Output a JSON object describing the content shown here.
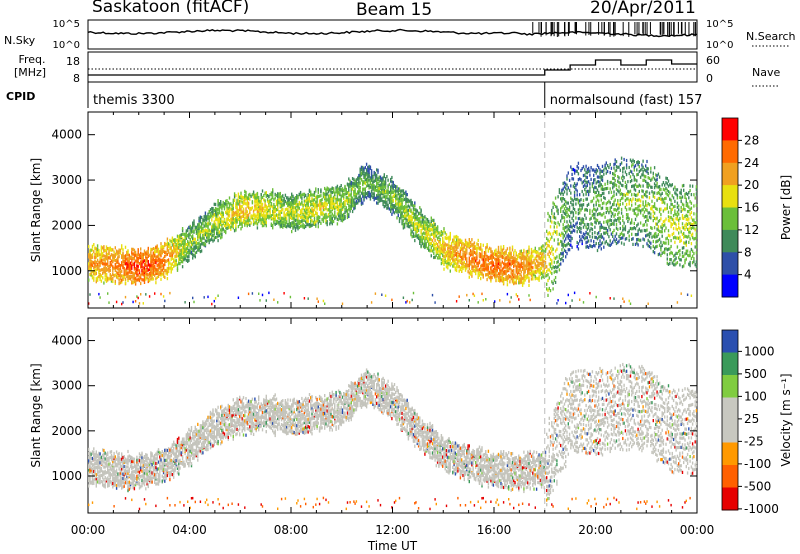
{
  "header": {
    "station": "Saskatoon (fitACF)",
    "beam": "Beam 15",
    "date": "20/Apr/2011"
  },
  "top_panels": {
    "nsky_label": "N.Sky",
    "nsearch_label": "N.Search",
    "freq_label": "Freq.",
    "freq_unit": "[MHz]",
    "nave_label": "Nave",
    "cpid_label": "CPID",
    "noise_ticks": [
      "10^5",
      "10^0"
    ],
    "freq_ticks": [
      "18",
      "8"
    ],
    "nave_ticks": [
      "60",
      "0"
    ],
    "cpid_segments": [
      {
        "name": "themis 3300",
        "start_hour": 0,
        "end_hour": 18.0
      },
      {
        "name": "normalsound (fast) 157",
        "start_hour": 18.0,
        "end_hour": 24
      }
    ]
  },
  "colors": {
    "power_scale": [
      "#0000ff",
      "#2e4fa8",
      "#3f8a5a",
      "#6bbf3a",
      "#e8e010",
      "#f0a020",
      "#ff6a00",
      "#ff0000"
    ],
    "velocity_scale": [
      "#e60000",
      "#ff6000",
      "#ff9900",
      "#c8c8c0",
      "#c8c8c0",
      "#80cc40",
      "#3a9a5a",
      "#2a4fb0"
    ]
  },
  "chart_data": [
    {
      "type": "heatmap",
      "name": "power",
      "x": [
        0,
        1,
        2,
        3,
        4,
        5,
        6,
        7,
        8,
        9,
        10,
        11,
        12,
        13,
        14,
        15,
        16,
        17,
        18,
        19,
        20,
        21,
        22,
        23
      ],
      "echo_band_center_km": [
        1150,
        1100,
        1050,
        1200,
        1600,
        2050,
        2300,
        2350,
        2250,
        2350,
        2450,
        2950,
        2600,
        1950,
        1450,
        1250,
        1100,
        1050,
        1150,
        2400,
        2350,
        2500,
        2450,
        1950
      ],
      "echo_band_power_db": [
        20,
        22,
        26,
        22,
        12,
        14,
        18,
        16,
        14,
        16,
        14,
        10,
        12,
        14,
        18,
        22,
        24,
        22,
        18,
        8,
        10,
        12,
        12,
        14
      ],
      "xlabel": "Time UT",
      "ylabel": "Slant Range [km]",
      "xticks": [
        "00:00",
        "04:00",
        "08:00",
        "12:00",
        "16:00",
        "20:00",
        "00:00"
      ],
      "yticks": [
        "1000",
        "2000",
        "3000",
        "4000"
      ],
      "ylim": [
        180,
        4500
      ],
      "colorbar_label": "Power [dB]",
      "colorbar_ticks": [
        "4",
        "8",
        "12",
        "16",
        "20",
        "24",
        "28"
      ]
    },
    {
      "type": "heatmap",
      "name": "velocity",
      "x": [
        0,
        1,
        2,
        3,
        4,
        5,
        6,
        7,
        8,
        9,
        10,
        11,
        12,
        13,
        14,
        15,
        16,
        17,
        18,
        19,
        20,
        21,
        22,
        23
      ],
      "xlabel": "Time UT",
      "ylabel": "Slant Range [km]",
      "xticks": [
        "00:00",
        "04:00",
        "08:00",
        "12:00",
        "16:00",
        "20:00",
        "00:00"
      ],
      "yticks": [
        "1000",
        "2000",
        "3000",
        "4000"
      ],
      "ylim": [
        180,
        4500
      ],
      "colorbar_label": "Velocity [m s⁻¹]",
      "colorbar_ticks": [
        "1000",
        "500",
        "100",
        "25",
        "-25",
        "-100",
        "-500",
        "-1000"
      ]
    }
  ]
}
